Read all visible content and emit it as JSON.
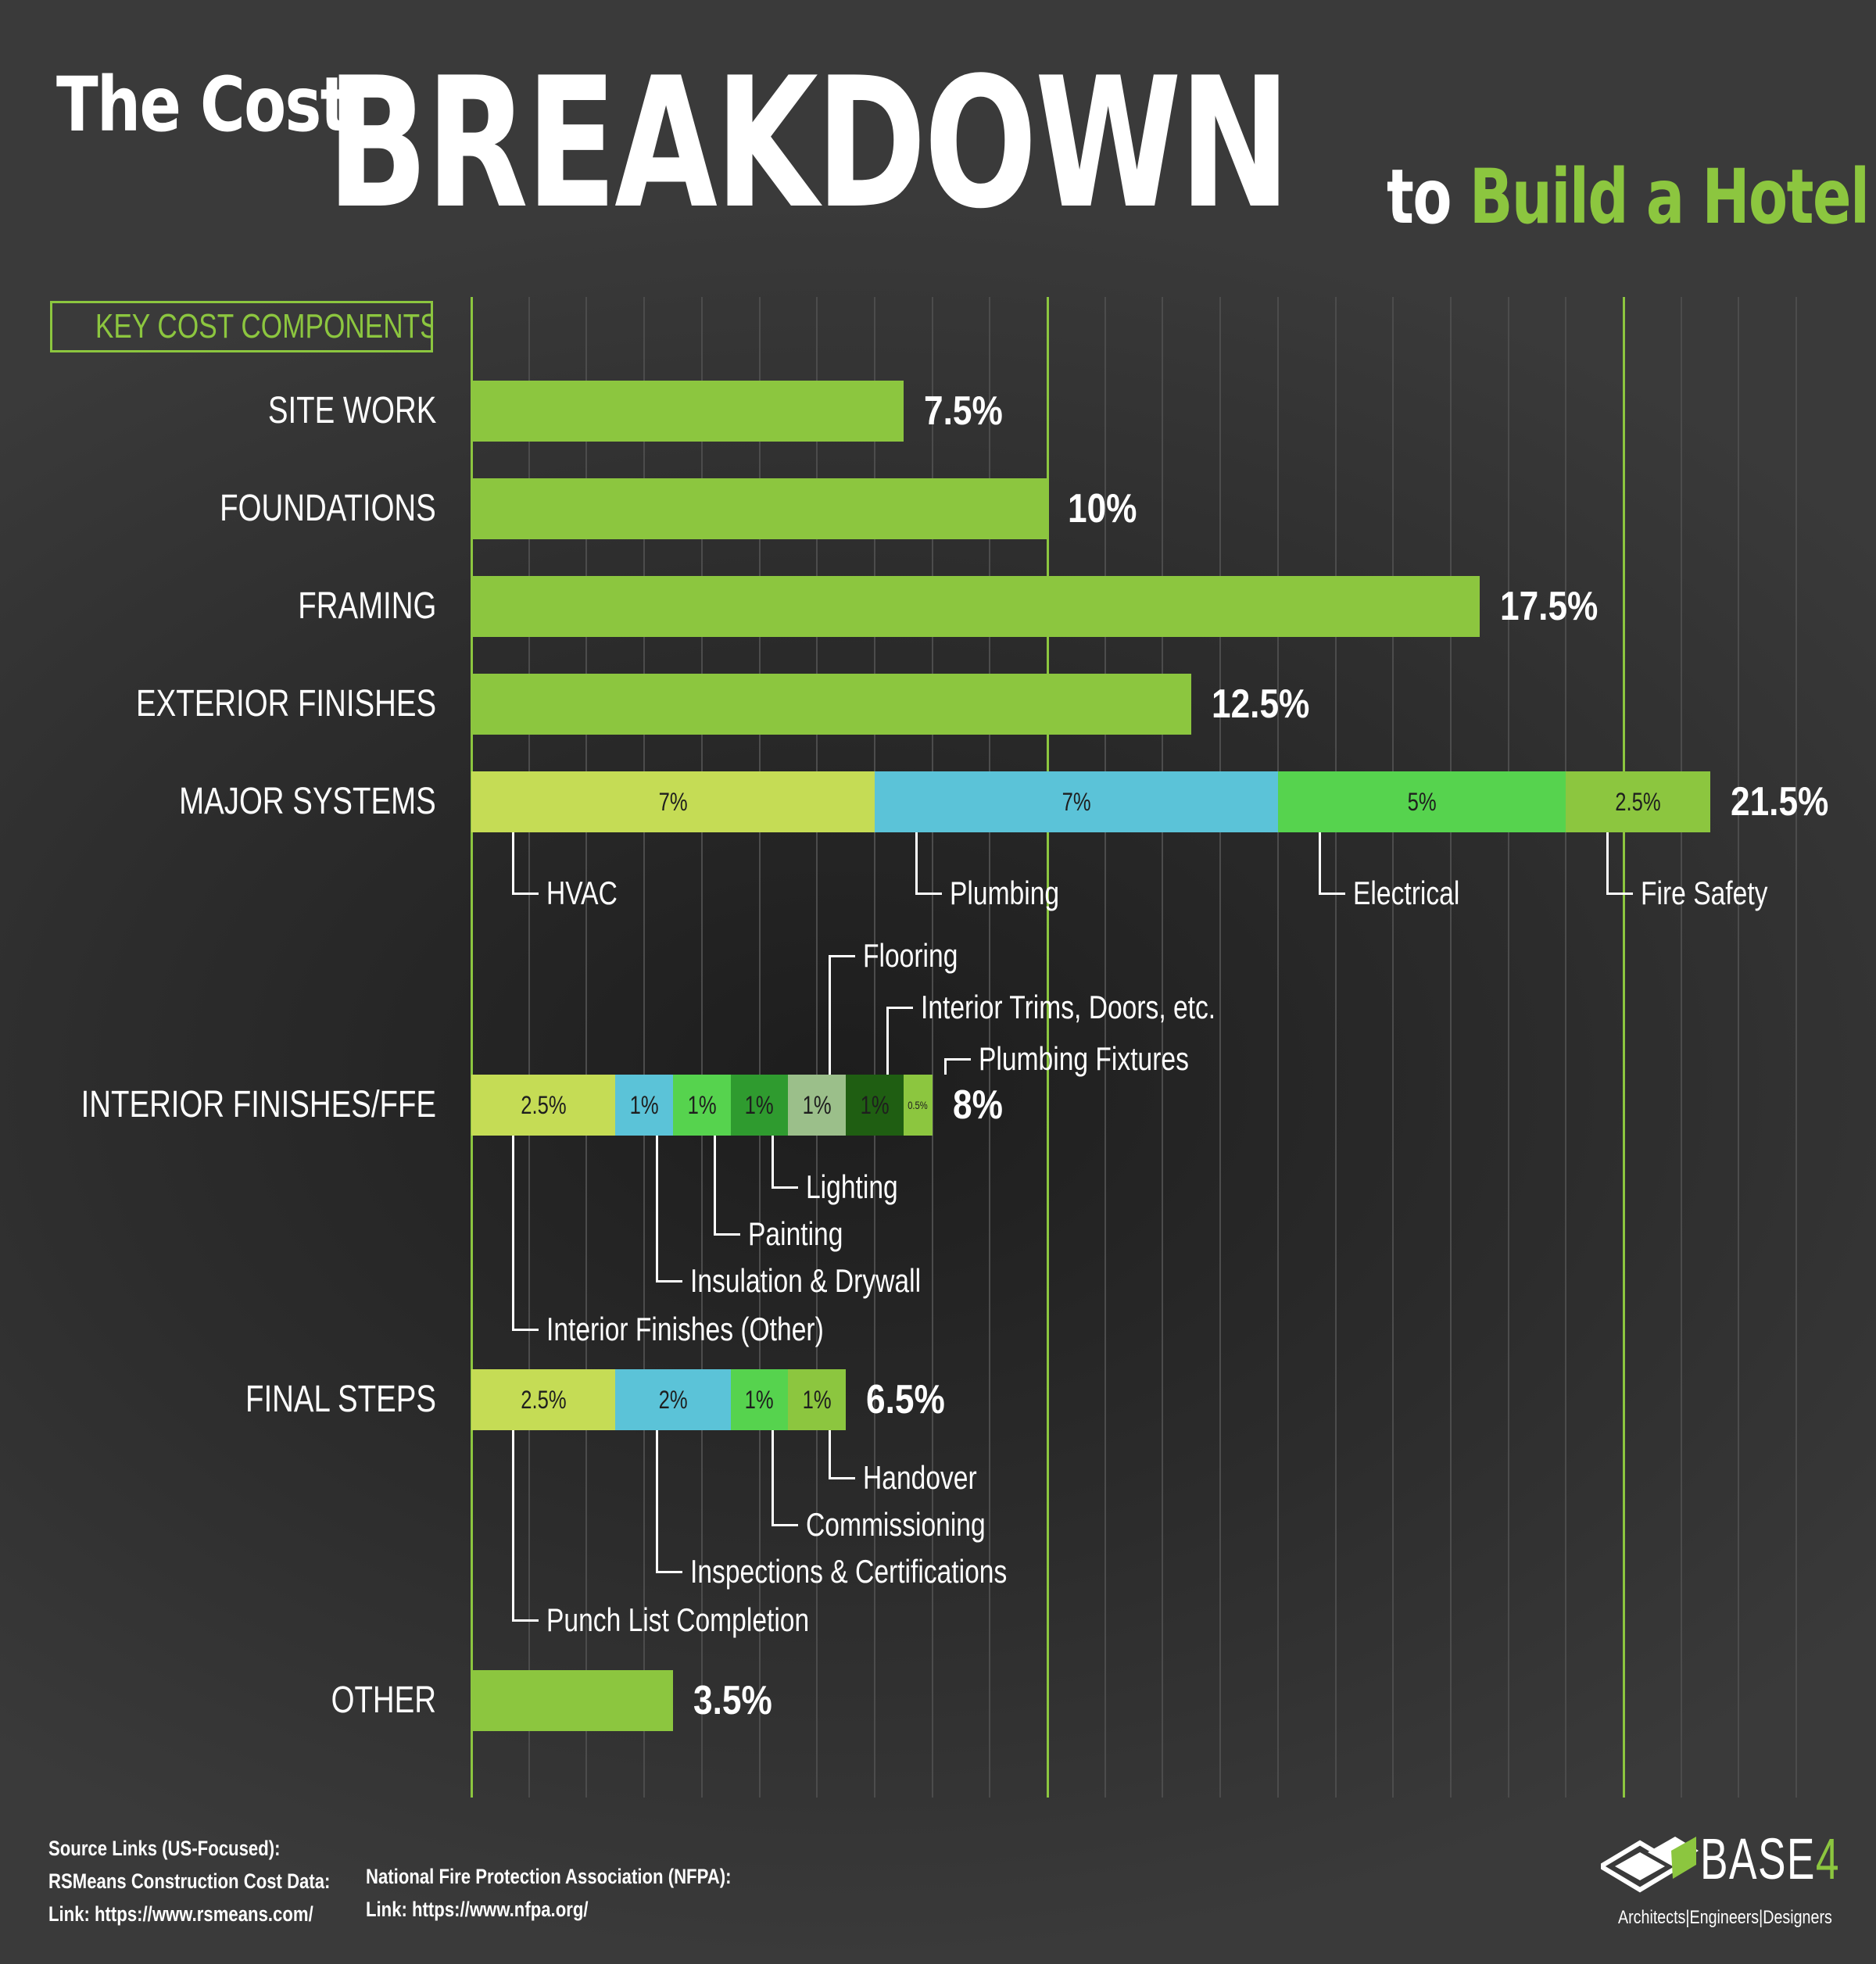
{
  "title": {
    "pre": "The Cost",
    "main": "BREAKDOWN",
    "post_to": "to",
    "post_accent": "Build a Hotel"
  },
  "key_box_label": "KEY COST COMPONENTS",
  "colors": {
    "accent": "#8cc63f",
    "lime": "#c5dc55",
    "blue": "#5bc3d8",
    "green": "#56d34e",
    "mid_green": "#2f9b2f",
    "pale_green": "#9bbf8a",
    "dark_green": "#1f5e12",
    "olive": "#8cc63f",
    "grid": "#4c4c4c"
  },
  "chart_data": {
    "type": "bar",
    "orientation": "horizontal",
    "stacked": true,
    "title": "The Cost BREAKDOWN to Build a Hotel",
    "xlim": [
      0,
      23
    ],
    "x_unit": "%",
    "grid": true,
    "categories": [
      {
        "name": "SITE WORK",
        "total": 7.5,
        "total_label": "7.5%",
        "segments": [
          {
            "value": 7.5,
            "color": "#8cc63f"
          }
        ]
      },
      {
        "name": "FOUNDATIONS",
        "total": 10,
        "total_label": "10%",
        "segments": [
          {
            "value": 10,
            "color": "#8cc63f"
          }
        ]
      },
      {
        "name": "FRAMING",
        "total": 17.5,
        "total_label": "17.5%",
        "segments": [
          {
            "value": 17.5,
            "color": "#8cc63f"
          }
        ]
      },
      {
        "name": "EXTERIOR FINISHES",
        "total": 12.5,
        "total_label": "12.5%",
        "segments": [
          {
            "value": 12.5,
            "color": "#8cc63f"
          }
        ]
      },
      {
        "name": "MAJOR SYSTEMS",
        "total": 21.5,
        "total_label": "21.5%",
        "segments": [
          {
            "name": "HVAC",
            "value": 7,
            "label": "7%",
            "color": "#c5dc55"
          },
          {
            "name": "Plumbing",
            "value": 7,
            "label": "7%",
            "color": "#5bc3d8"
          },
          {
            "name": "Electrical",
            "value": 5,
            "label": "5%",
            "color": "#56d34e"
          },
          {
            "name": "Fire Safety",
            "value": 2.5,
            "label": "2.5%",
            "color": "#8cc63f"
          }
        ]
      },
      {
        "name": "INTERIOR FINISHES/FFE",
        "total": 8,
        "total_label": "8%",
        "segments": [
          {
            "name": "Interior Finishes (Other)",
            "value": 2.5,
            "label": "2.5%",
            "color": "#c5dc55"
          },
          {
            "name": "Insulation & Drywall",
            "value": 1,
            "label": "1%",
            "color": "#5bc3d8"
          },
          {
            "name": "Painting",
            "value": 1,
            "label": "1%",
            "color": "#56d34e"
          },
          {
            "name": "Lighting",
            "value": 1,
            "label": "1%",
            "color": "#2f9b2f"
          },
          {
            "name": "Flooring",
            "value": 1,
            "label": "1%",
            "color": "#9bbf8a"
          },
          {
            "name": "Interior Trims, Doors, etc.",
            "value": 1,
            "label": "1%",
            "color": "#1f5e12"
          },
          {
            "name": "Plumbing Fixtures",
            "value": 0.5,
            "label": "0.5%",
            "color": "#8cc63f"
          }
        ]
      },
      {
        "name": "FINAL STEPS",
        "total": 6.5,
        "total_label": "6.5%",
        "segments": [
          {
            "name": "Punch List Completion",
            "value": 2.5,
            "label": "2.5%",
            "color": "#c5dc55"
          },
          {
            "name": "Inspections & Certifications",
            "value": 2,
            "label": "2%",
            "color": "#5bc3d8"
          },
          {
            "name": "Commissioning",
            "value": 1,
            "label": "1%",
            "color": "#56d34e"
          },
          {
            "name": "Handover",
            "value": 1,
            "label": "1%",
            "color": "#8cc63f"
          }
        ]
      },
      {
        "name": "OTHER",
        "total": 3.5,
        "total_label": "3.5%",
        "segments": [
          {
            "value": 3.5,
            "color": "#8cc63f"
          }
        ]
      }
    ]
  },
  "footer": {
    "source_heading": "Source Links (US-Focused):",
    "source1_name": "RSMeans Construction Cost Data:",
    "source1_link": "Link: https://www.rsmeans.com/",
    "source2_name": "National Fire Protection Association (NFPA):",
    "source2_link": "Link: https://www.nfpa.org/",
    "logo_main": "BASE",
    "logo_num": "4",
    "logo_tagline": "Architects|Engineers|Designers"
  }
}
